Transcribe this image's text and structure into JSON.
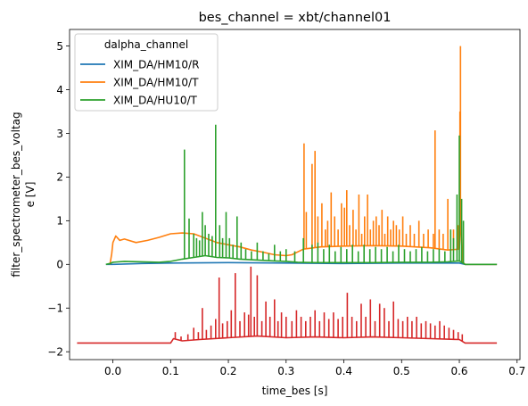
{
  "chart_data": {
    "type": "line",
    "title": "bes_channel = xbt/channel01",
    "xlabel": "time_bes [s]",
    "ylabel_lines": [
      "filter_spectrometer_bes_voltag",
      "e [V]"
    ],
    "xlim": [
      -0.075,
      0.705
    ],
    "ylim": [
      -2.18,
      5.38
    ],
    "xticks": [
      0.0,
      0.1,
      0.2,
      0.3,
      0.4,
      0.5,
      0.6,
      0.7
    ],
    "xtick_labels": [
      "0.0",
      "0.1",
      "0.2",
      "0.3",
      "0.4",
      "0.5",
      "0.6",
      "0.7"
    ],
    "yticks": [
      -2,
      -1,
      0,
      1,
      2,
      3,
      4,
      5
    ],
    "ytick_labels": [
      "−2",
      "−1",
      "0",
      "1",
      "2",
      "3",
      "4",
      "5"
    ],
    "grid": false,
    "legend": {
      "title": "dalpha_channel",
      "placement": "upper-left",
      "entries": [
        "XIM_DA/HM10/R",
        "XIM_DA/HM10/T",
        "XIM_DA/HU10/T"
      ]
    },
    "series": [
      {
        "name": "XIM_DA/HM10/R",
        "color": "#1f77b4",
        "in_legend": true,
        "baseline": [
          [
            -0.012,
            0.0
          ],
          [
            0.0,
            0.0
          ],
          [
            0.05,
            0.02
          ],
          [
            0.1,
            0.03
          ],
          [
            0.2,
            0.04
          ],
          [
            0.3,
            0.03
          ],
          [
            0.4,
            0.02
          ],
          [
            0.5,
            0.03
          ],
          [
            0.6,
            0.03
          ],
          [
            0.61,
            0.0
          ],
          [
            0.665,
            0.0
          ]
        ],
        "spikes": []
      },
      {
        "name": "XIM_DA/HM10/T",
        "color": "#ff7f0e",
        "in_legend": true,
        "baseline": [
          [
            -0.005,
            0.0
          ],
          [
            -0.002,
            0.25
          ],
          [
            0.0,
            0.5
          ],
          [
            0.005,
            0.65
          ],
          [
            0.012,
            0.55
          ],
          [
            0.02,
            0.58
          ],
          [
            0.04,
            0.5
          ],
          [
            0.06,
            0.55
          ],
          [
            0.08,
            0.62
          ],
          [
            0.1,
            0.7
          ],
          [
            0.12,
            0.72
          ],
          [
            0.14,
            0.7
          ],
          [
            0.16,
            0.6
          ],
          [
            0.18,
            0.5
          ],
          [
            0.2,
            0.45
          ],
          [
            0.22,
            0.4
          ],
          [
            0.24,
            0.33
          ],
          [
            0.26,
            0.28
          ],
          [
            0.28,
            0.22
          ],
          [
            0.3,
            0.2
          ],
          [
            0.31,
            0.22
          ],
          [
            0.33,
            0.35
          ],
          [
            0.36,
            0.4
          ],
          [
            0.4,
            0.42
          ],
          [
            0.45,
            0.43
          ],
          [
            0.5,
            0.42
          ],
          [
            0.55,
            0.38
          ],
          [
            0.58,
            0.33
          ],
          [
            0.6,
            0.35
          ],
          [
            0.603,
            1.0
          ],
          [
            0.606,
            0.05
          ],
          [
            0.61,
            0.0
          ],
          [
            0.665,
            0.0
          ]
        ],
        "spikes": [
          [
            0.331,
            2.77
          ],
          [
            0.335,
            1.2
          ],
          [
            0.345,
            2.3
          ],
          [
            0.35,
            2.6
          ],
          [
            0.355,
            1.1
          ],
          [
            0.362,
            1.4
          ],
          [
            0.368,
            0.8
          ],
          [
            0.372,
            1.0
          ],
          [
            0.378,
            1.65
          ],
          [
            0.384,
            1.1
          ],
          [
            0.39,
            0.8
          ],
          [
            0.396,
            1.4
          ],
          [
            0.401,
            1.3
          ],
          [
            0.405,
            1.7
          ],
          [
            0.41,
            0.9
          ],
          [
            0.416,
            1.25
          ],
          [
            0.421,
            0.8
          ],
          [
            0.426,
            1.6
          ],
          [
            0.431,
            0.7
          ],
          [
            0.436,
            1.1
          ],
          [
            0.441,
            1.6
          ],
          [
            0.446,
            0.8
          ],
          [
            0.451,
            1.0
          ],
          [
            0.456,
            1.1
          ],
          [
            0.461,
            0.9
          ],
          [
            0.466,
            1.25
          ],
          [
            0.471,
            0.7
          ],
          [
            0.476,
            1.1
          ],
          [
            0.481,
            0.8
          ],
          [
            0.486,
            1.0
          ],
          [
            0.491,
            0.9
          ],
          [
            0.496,
            0.8
          ],
          [
            0.502,
            1.1
          ],
          [
            0.508,
            0.7
          ],
          [
            0.515,
            0.9
          ],
          [
            0.522,
            0.7
          ],
          [
            0.53,
            1.0
          ],
          [
            0.538,
            0.7
          ],
          [
            0.546,
            0.8
          ],
          [
            0.555,
            0.7
          ],
          [
            0.558,
            3.07
          ],
          [
            0.565,
            0.8
          ],
          [
            0.572,
            0.7
          ],
          [
            0.58,
            1.5
          ],
          [
            0.59,
            0.8
          ],
          [
            0.598,
            0.9
          ],
          [
            0.601,
            3.5
          ],
          [
            0.602,
            5.0
          ]
        ]
      },
      {
        "name": "XIM_DA/HU10/T",
        "color": "#2ca02c",
        "in_legend": true,
        "baseline": [
          [
            -0.012,
            0.0
          ],
          [
            -0.005,
            0.02
          ],
          [
            0.0,
            0.05
          ],
          [
            0.02,
            0.07
          ],
          [
            0.05,
            0.06
          ],
          [
            0.08,
            0.05
          ],
          [
            0.1,
            0.07
          ],
          [
            0.12,
            0.12
          ],
          [
            0.14,
            0.16
          ],
          [
            0.16,
            0.2
          ],
          [
            0.18,
            0.16
          ],
          [
            0.2,
            0.15
          ],
          [
            0.22,
            0.12
          ],
          [
            0.25,
            0.1
          ],
          [
            0.28,
            0.08
          ],
          [
            0.3,
            0.07
          ],
          [
            0.32,
            0.05
          ],
          [
            0.35,
            0.04
          ],
          [
            0.4,
            0.04
          ],
          [
            0.45,
            0.04
          ],
          [
            0.5,
            0.05
          ],
          [
            0.55,
            0.05
          ],
          [
            0.58,
            0.06
          ],
          [
            0.6,
            0.08
          ],
          [
            0.61,
            0.0
          ],
          [
            0.665,
            0.0
          ]
        ],
        "spikes": [
          [
            0.124,
            2.63
          ],
          [
            0.132,
            1.05
          ],
          [
            0.14,
            0.7
          ],
          [
            0.145,
            0.6
          ],
          [
            0.15,
            0.55
          ],
          [
            0.155,
            1.2
          ],
          [
            0.16,
            0.9
          ],
          [
            0.166,
            0.7
          ],
          [
            0.172,
            0.65
          ],
          [
            0.178,
            3.2
          ],
          [
            0.185,
            0.9
          ],
          [
            0.19,
            0.6
          ],
          [
            0.196,
            1.2
          ],
          [
            0.202,
            0.6
          ],
          [
            0.208,
            0.45
          ],
          [
            0.215,
            1.1
          ],
          [
            0.222,
            0.5
          ],
          [
            0.23,
            0.35
          ],
          [
            0.24,
            0.3
          ],
          [
            0.25,
            0.5
          ],
          [
            0.26,
            0.3
          ],
          [
            0.27,
            0.25
          ],
          [
            0.28,
            0.45
          ],
          [
            0.29,
            0.3
          ],
          [
            0.3,
            0.35
          ],
          [
            0.315,
            0.3
          ],
          [
            0.33,
            0.6
          ],
          [
            0.345,
            0.45
          ],
          [
            0.355,
            0.5
          ],
          [
            0.365,
            0.35
          ],
          [
            0.375,
            0.45
          ],
          [
            0.385,
            0.3
          ],
          [
            0.395,
            0.4
          ],
          [
            0.405,
            0.35
          ],
          [
            0.415,
            0.45
          ],
          [
            0.425,
            0.3
          ],
          [
            0.435,
            0.45
          ],
          [
            0.445,
            0.35
          ],
          [
            0.455,
            0.4
          ],
          [
            0.465,
            0.35
          ],
          [
            0.475,
            0.4
          ],
          [
            0.485,
            0.3
          ],
          [
            0.495,
            0.45
          ],
          [
            0.505,
            0.35
          ],
          [
            0.515,
            0.3
          ],
          [
            0.525,
            0.35
          ],
          [
            0.535,
            0.4
          ],
          [
            0.545,
            0.3
          ],
          [
            0.555,
            0.35
          ],
          [
            0.565,
            0.35
          ],
          [
            0.575,
            0.3
          ],
          [
            0.585,
            0.8
          ],
          [
            0.59,
            0.6
          ],
          [
            0.596,
            1.6
          ],
          [
            0.6,
            2.95
          ],
          [
            0.604,
            1.5
          ],
          [
            0.607,
            1.0
          ]
        ]
      },
      {
        "name": "",
        "color": "#d62728",
        "in_legend": false,
        "baseline": [
          [
            -0.062,
            -1.8
          ],
          [
            0.0,
            -1.8
          ],
          [
            0.05,
            -1.8
          ],
          [
            0.1,
            -1.8
          ],
          [
            0.105,
            -1.7
          ],
          [
            0.12,
            -1.75
          ],
          [
            0.15,
            -1.72
          ],
          [
            0.2,
            -1.68
          ],
          [
            0.25,
            -1.64
          ],
          [
            0.3,
            -1.68
          ],
          [
            0.35,
            -1.66
          ],
          [
            0.4,
            -1.68
          ],
          [
            0.45,
            -1.66
          ],
          [
            0.5,
            -1.68
          ],
          [
            0.55,
            -1.7
          ],
          [
            0.6,
            -1.72
          ],
          [
            0.61,
            -1.8
          ],
          [
            0.665,
            -1.8
          ]
        ],
        "spikes": [
          [
            0.108,
            -1.55
          ],
          [
            0.118,
            -1.65
          ],
          [
            0.13,
            -1.6
          ],
          [
            0.14,
            -1.45
          ],
          [
            0.148,
            -1.55
          ],
          [
            0.155,
            -1.0
          ],
          [
            0.162,
            -1.5
          ],
          [
            0.17,
            -1.4
          ],
          [
            0.178,
            -1.25
          ],
          [
            0.184,
            -0.3
          ],
          [
            0.19,
            -1.35
          ],
          [
            0.198,
            -1.3
          ],
          [
            0.205,
            -1.05
          ],
          [
            0.212,
            -0.2
          ],
          [
            0.22,
            -1.3
          ],
          [
            0.228,
            -1.1
          ],
          [
            0.235,
            -1.15
          ],
          [
            0.239,
            -0.05
          ],
          [
            0.245,
            -1.2
          ],
          [
            0.25,
            -0.25
          ],
          [
            0.258,
            -1.3
          ],
          [
            0.265,
            -0.85
          ],
          [
            0.272,
            -1.2
          ],
          [
            0.28,
            -0.8
          ],
          [
            0.286,
            -1.3
          ],
          [
            0.292,
            -1.1
          ],
          [
            0.3,
            -1.2
          ],
          [
            0.31,
            -1.3
          ],
          [
            0.318,
            -1.05
          ],
          [
            0.326,
            -1.2
          ],
          [
            0.334,
            -1.3
          ],
          [
            0.342,
            -1.2
          ],
          [
            0.35,
            -1.05
          ],
          [
            0.358,
            -1.3
          ],
          [
            0.366,
            -1.1
          ],
          [
            0.374,
            -1.25
          ],
          [
            0.382,
            -1.1
          ],
          [
            0.39,
            -1.25
          ],
          [
            0.398,
            -1.2
          ],
          [
            0.406,
            -0.65
          ],
          [
            0.414,
            -1.2
          ],
          [
            0.422,
            -1.3
          ],
          [
            0.43,
            -0.9
          ],
          [
            0.438,
            -1.2
          ],
          [
            0.446,
            -0.8
          ],
          [
            0.454,
            -1.3
          ],
          [
            0.462,
            -0.9
          ],
          [
            0.47,
            -1.0
          ],
          [
            0.478,
            -1.3
          ],
          [
            0.486,
            -0.85
          ],
          [
            0.494,
            -1.25
          ],
          [
            0.502,
            -1.3
          ],
          [
            0.51,
            -1.2
          ],
          [
            0.518,
            -1.3
          ],
          [
            0.526,
            -1.2
          ],
          [
            0.534,
            -1.35
          ],
          [
            0.542,
            -1.3
          ],
          [
            0.55,
            -1.35
          ],
          [
            0.558,
            -1.4
          ],
          [
            0.566,
            -1.3
          ],
          [
            0.574,
            -1.4
          ],
          [
            0.582,
            -1.45
          ],
          [
            0.59,
            -1.5
          ],
          [
            0.598,
            -1.55
          ],
          [
            0.605,
            -1.6
          ]
        ]
      }
    ]
  }
}
